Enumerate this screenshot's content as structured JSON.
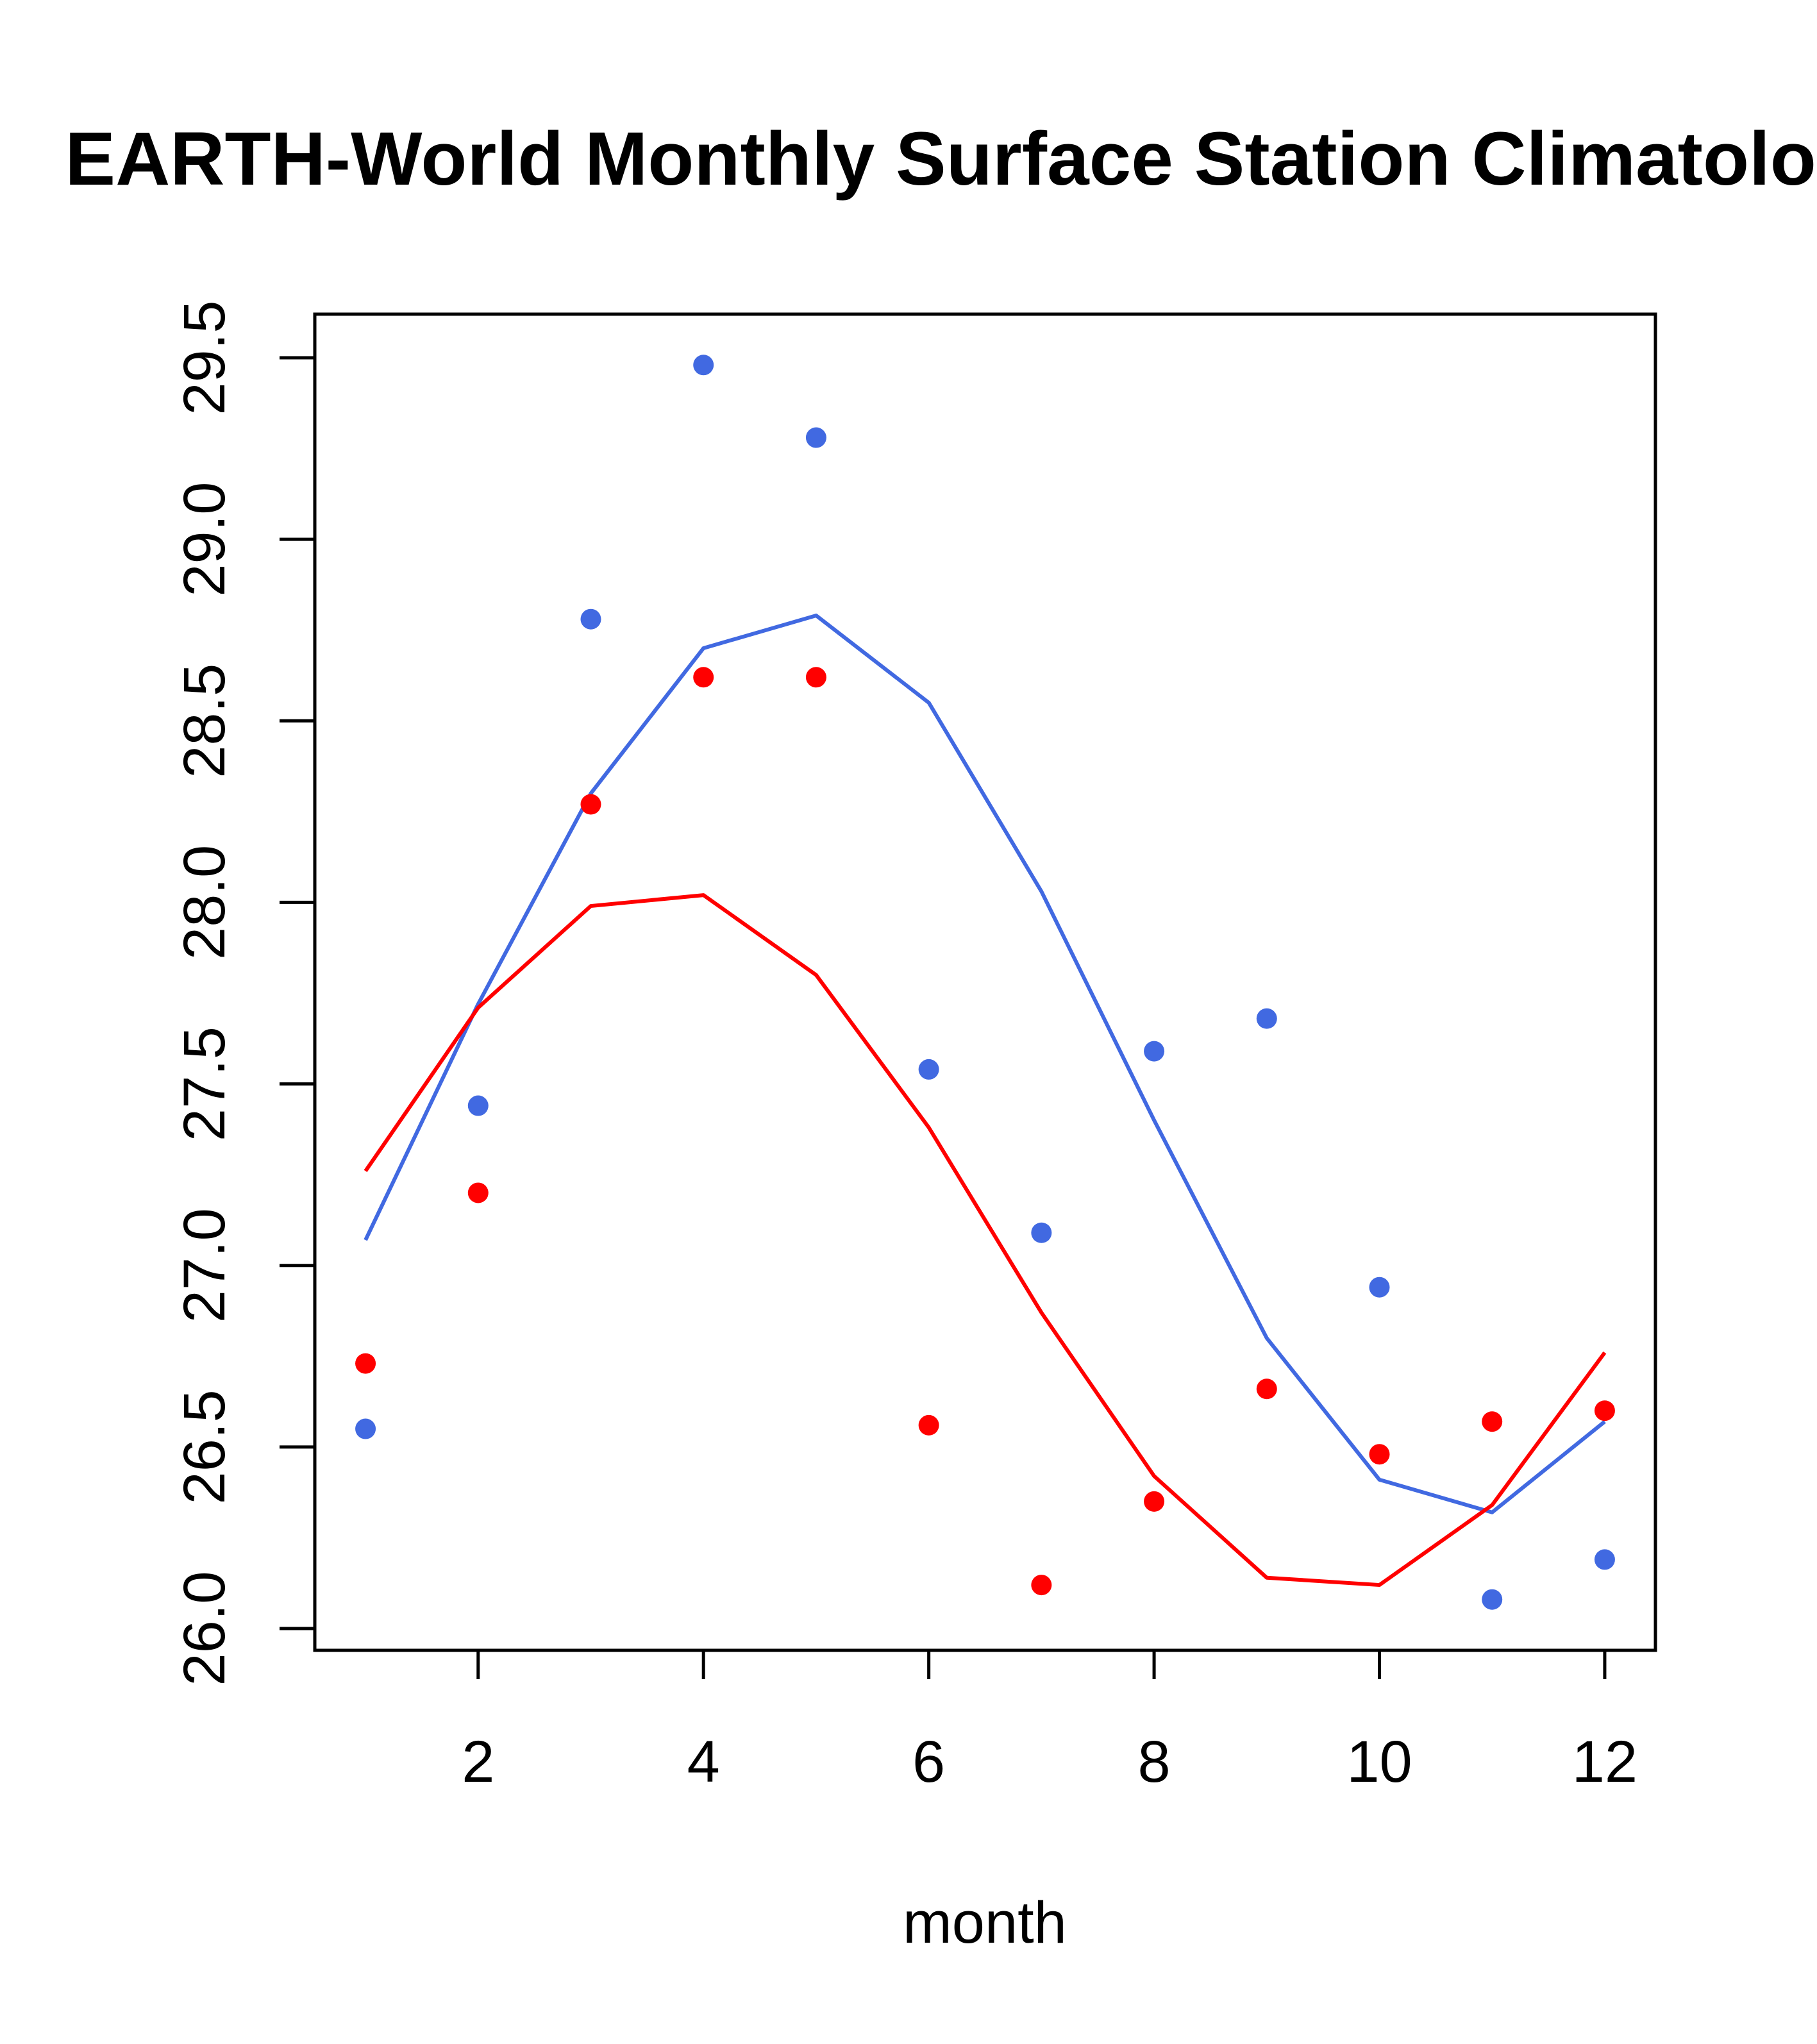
{
  "chart_data": {
    "type": "scatter",
    "title": "EARTH-World Monthly Surface Station Climatology",
    "xlabel": "month",
    "ylabel": "",
    "xlim": [
      0.55,
      12.45
    ],
    "ylim": [
      25.94,
      29.62
    ],
    "x_ticks": [
      2,
      4,
      6,
      8,
      10,
      12
    ],
    "x_tick_labels": [
      "2",
      "4",
      "6",
      "8",
      "10",
      "12"
    ],
    "y_ticks": [
      26.0,
      26.5,
      27.0,
      27.5,
      28.0,
      28.5,
      29.0,
      29.5
    ],
    "y_tick_labels": [
      "26.0",
      "26.5",
      "27.0",
      "27.5",
      "28.0",
      "28.5",
      "29.0",
      "29.5"
    ],
    "grid": false,
    "legend": null,
    "x": [
      1,
      2,
      3,
      4,
      5,
      6,
      7,
      8,
      9,
      10,
      11,
      12
    ],
    "series": [
      {
        "name": "blue-points",
        "kind": "points",
        "color": "#4169E1",
        "values": [
          26.55,
          27.44,
          28.78,
          29.48,
          29.28,
          27.54,
          27.09,
          27.59,
          27.68,
          26.94,
          26.08,
          26.19
        ]
      },
      {
        "name": "red-points",
        "kind": "points",
        "color": "#FF0000",
        "values": [
          26.73,
          27.2,
          28.27,
          28.62,
          28.62,
          26.56,
          26.12,
          26.35,
          26.66,
          26.48,
          26.57,
          26.6
        ]
      },
      {
        "name": "blue-line",
        "kind": "line",
        "color": "#4169E1",
        "values": [
          27.07,
          27.72,
          28.3,
          28.7,
          28.79,
          28.55,
          28.03,
          27.4,
          26.8,
          26.41,
          26.32,
          26.57
        ]
      },
      {
        "name": "red-line",
        "kind": "line",
        "color": "#FF0000",
        "values": [
          27.26,
          27.71,
          27.99,
          28.02,
          27.8,
          27.38,
          26.87,
          26.42,
          26.14,
          26.12,
          26.34,
          26.76
        ]
      }
    ]
  }
}
